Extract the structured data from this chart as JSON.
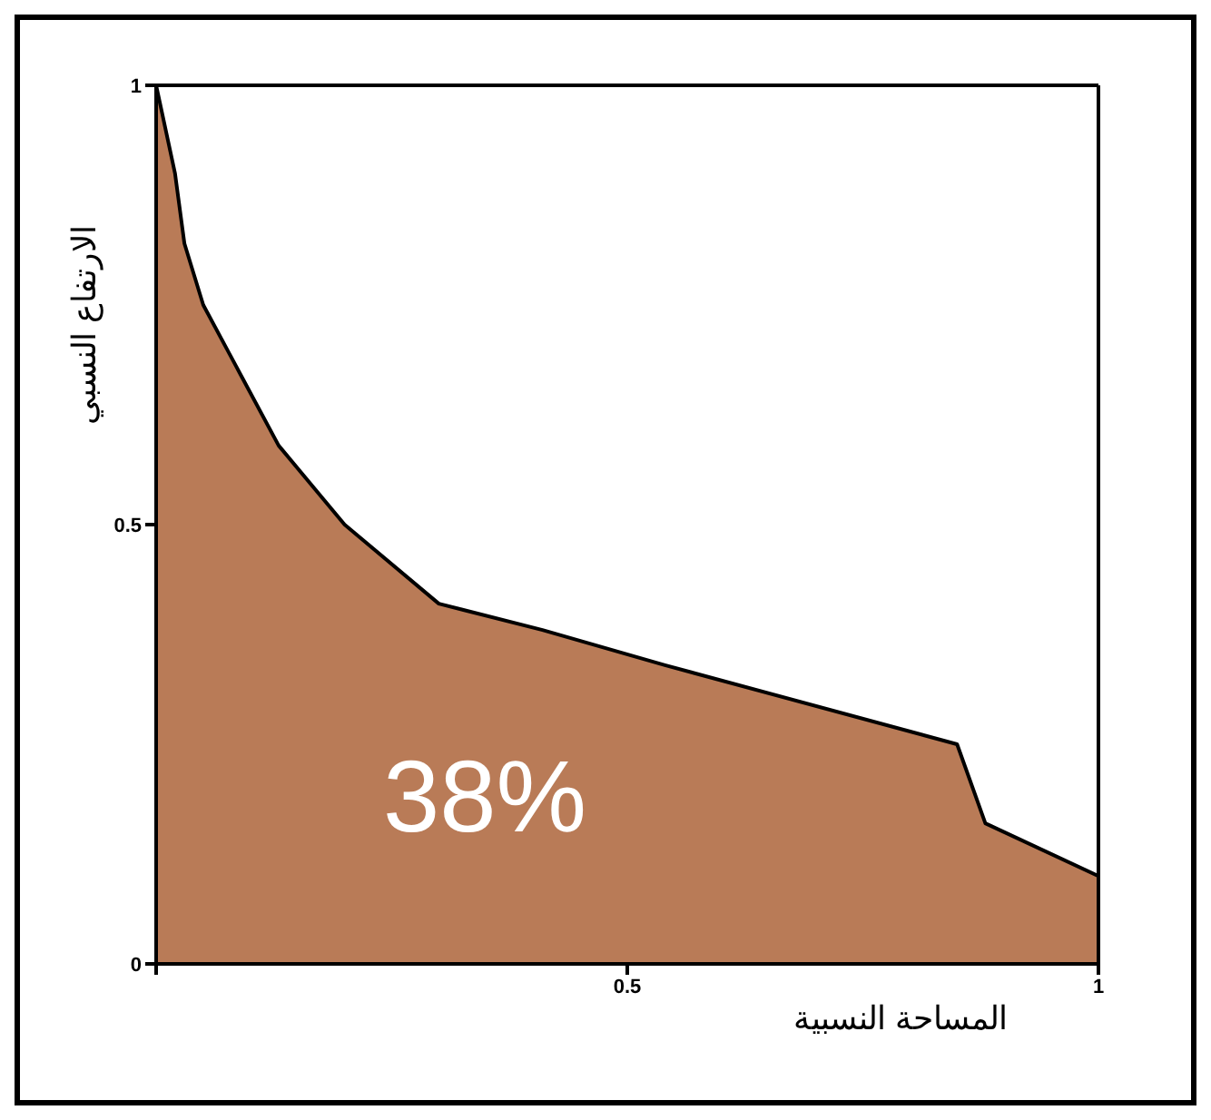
{
  "chart_data": {
    "type": "area",
    "xlabel": "المساحة النسبية",
    "ylabel": "الارتفاع النسبي",
    "annotations": [
      "38%"
    ],
    "x": [
      0,
      0.02,
      0.03,
      0.05,
      0.09,
      0.13,
      0.2,
      0.3,
      0.41,
      0.54,
      0.85,
      0.88,
      1
    ],
    "series": [
      {
        "color": "#b97b57",
        "values": [
          1,
          0.9,
          0.82,
          0.75,
          0.67,
          0.59,
          0.5,
          0.41,
          0.38,
          0.34,
          0.25,
          0.16,
          0.1
        ]
      }
    ],
    "xlim": [
      0,
      1
    ],
    "ylim": [
      0,
      1
    ],
    "xticks": [
      {
        "value": 0,
        "label": null
      },
      0.5,
      1
    ],
    "yticks": [
      0,
      0.5,
      1
    ],
    "grid": false,
    "legend": false
  }
}
